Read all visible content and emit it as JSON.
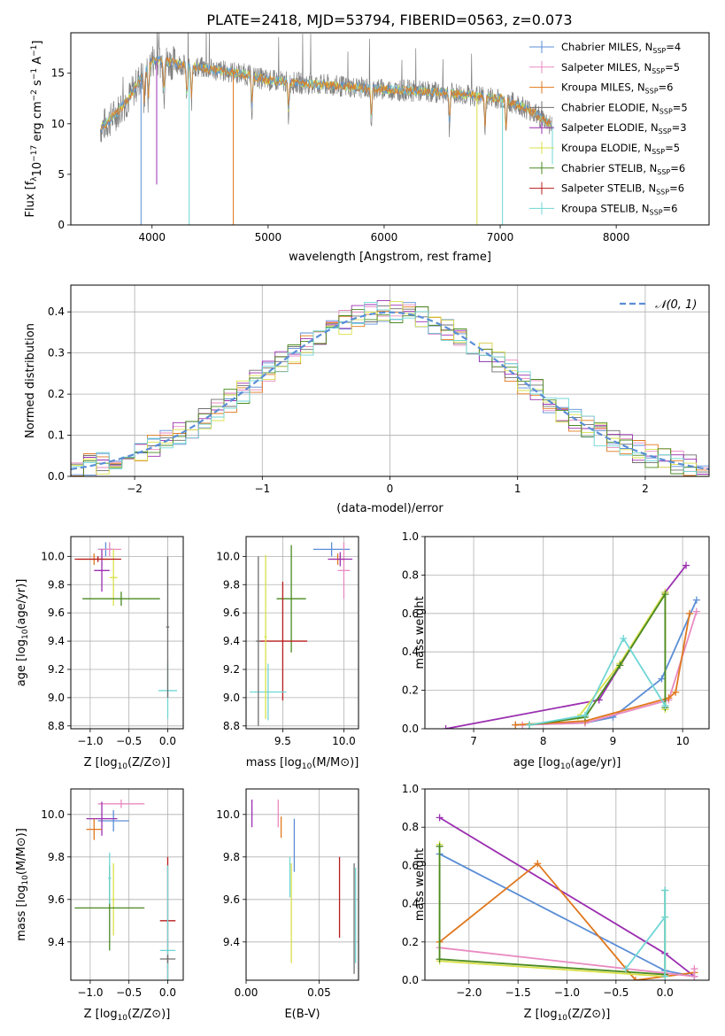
{
  "title": "PLATE=2418, MJD=53794, FIBERID=0563, z=0.073",
  "colors": {
    "series": [
      "#5b8ed6",
      "#e88ac0",
      "#e0781e",
      "#6f6f6f",
      "#9b2fb0",
      "#d9e04a",
      "#4a8a22",
      "#b81c1c",
      "#70d6d6"
    ],
    "spectrum_obs": "#808080",
    "gaussian": "#5b8ed6",
    "grid": "#b0b0b0"
  },
  "legend_top": [
    "Chabrier MILES, N",
    "Salpeter MILES, N",
    "Kroupa MILES, N",
    "Chabrier ELODIE, N",
    "Salpeter ELODIE, N",
    "Kroupa ELODIE, N",
    "Chabrier STELIB, N",
    "Salpeter STELIB, N",
    "Kroupa STELIB, N"
  ],
  "legend_sub": "SSP",
  "legend_counts": [
    "=4",
    "=5",
    "=6",
    "=5",
    "=3",
    "=5",
    "=6",
    "=6",
    "=6"
  ],
  "legend_hist": "𝒩(0, 1)",
  "chart_data": [
    {
      "type": "line",
      "name": "spectrum",
      "xlabel": "wavelength [Angstrom, rest frame]",
      "ylabel": "Flux [f",
      "ylabel_parts": [
        "Flux [f",
        "λ",
        "10",
        "−17",
        " erg cm",
        "−2",
        " s",
        "−1",
        " A",
        "−1",
        "]"
      ],
      "xlim": [
        3300,
        8800
      ],
      "ylim": [
        0,
        19
      ],
      "xticks": [
        4000,
        5000,
        6000,
        7000,
        8000
      ],
      "yticks": [
        0,
        5,
        10,
        15
      ],
      "continuum": [
        [
          3550,
          9.5
        ],
        [
          3650,
          10.5
        ],
        [
          3800,
          12.5
        ],
        [
          3900,
          14.5
        ],
        [
          4000,
          16.3
        ],
        [
          4100,
          16.2
        ],
        [
          4300,
          15.8
        ],
        [
          4500,
          15.4
        ],
        [
          4800,
          14.9
        ],
        [
          5000,
          14.3
        ],
        [
          5500,
          13.8
        ],
        [
          6000,
          13.4
        ],
        [
          6500,
          13.1
        ],
        [
          7000,
          12.5
        ],
        [
          7200,
          11.7
        ],
        [
          7300,
          11.0
        ],
        [
          7400,
          10.2
        ],
        [
          7450,
          9.8
        ]
      ],
      "absorption_lines": [
        3933,
        3968,
        4102,
        4300,
        4340,
        4861,
        5175,
        5890,
        6563,
        6870,
        7050
      ],
      "spikes": [
        4700,
        6800,
        7020
      ]
    },
    {
      "type": "line",
      "name": "residual-histogram",
      "xlabel": "(data-model)/error",
      "ylabel": "Normed distribution",
      "xlim": [
        -2.5,
        2.5
      ],
      "ylim": [
        0,
        0.465
      ],
      "xticks": [
        -2,
        -1,
        0,
        1,
        2
      ],
      "xticklabels": [
        "−2",
        "−1",
        "0",
        "1",
        "2"
      ],
      "yticks": [
        0.0,
        0.1,
        0.2,
        0.3,
        0.4
      ],
      "yticklabels": [
        "0.0",
        "0.1",
        "0.2",
        "0.3",
        "0.4"
      ],
      "bin_width": 0.1
    },
    {
      "type": "scatter",
      "name": "age-vs-Z",
      "xlabel": "Z [log",
      "ylabel": "age  [log",
      "xlim": [
        -1.25,
        0.2
      ],
      "ylim": [
        8.78,
        10.14
      ],
      "xticks": [
        -1.0,
        -0.5,
        0.0
      ],
      "xticklabels": [
        "−1.0",
        "−0.5",
        "0.0"
      ],
      "yticks": [
        8.8,
        9.0,
        9.2,
        9.4,
        9.6,
        9.8,
        10.0
      ],
      "yticklabels": [
        "8.8",
        "9.0",
        "9.2",
        "9.4",
        "9.6",
        "9.8",
        "10.0"
      ],
      "crosses": [
        {
          "s": 0,
          "x": -0.8,
          "y": 10.05,
          "dx": 0.1,
          "dy": 0.05
        },
        {
          "s": 1,
          "x": -0.75,
          "y": 10.05,
          "dx": 0.15,
          "dy": 0.05
        },
        {
          "s": 2,
          "x": -0.95,
          "y": 9.98,
          "dx": 0.2,
          "dy": 0.04
        },
        {
          "s": 4,
          "x": -0.85,
          "y": 9.9,
          "dx": 0.1,
          "dy": 0.15
        },
        {
          "s": 5,
          "x": -0.7,
          "y": 9.85,
          "dx": 0.05,
          "dy": 0.2
        },
        {
          "s": 6,
          "x": -0.6,
          "y": 9.7,
          "dx": 0.5,
          "dy": 0.05
        },
        {
          "s": 7,
          "x": -0.9,
          "y": 9.98,
          "dx": 0.3,
          "dy": 0.02
        },
        {
          "s": 8,
          "x": 0.0,
          "y": 9.05,
          "dx": 0.12,
          "dy": 0.2
        },
        {
          "s": 3,
          "x": 0.0,
          "y": 9.5,
          "dx": 0.02,
          "dy": 0.5
        }
      ]
    },
    {
      "type": "scatter",
      "name": "age-vs-mass",
      "xlabel": "mass [log",
      "xlim": [
        9.2,
        10.12
      ],
      "ylim": [
        8.78,
        10.14
      ],
      "xticks": [
        9.5,
        10.0
      ],
      "xticklabels": [
        "9.5",
        "10.0"
      ],
      "yticks": [
        8.8,
        9.0,
        9.2,
        9.4,
        9.6,
        9.8,
        10.0
      ],
      "yticklabels": [
        "8.8",
        "9.0",
        "9.2",
        "9.4",
        "9.6",
        "9.8",
        "10.0"
      ],
      "crosses": [
        {
          "s": 0,
          "x": 9.9,
          "y": 10.05,
          "dx": 0.15,
          "dy": 0.05
        },
        {
          "s": 1,
          "x": 10.0,
          "y": 9.9,
          "dx": 0.05,
          "dy": 0.2
        },
        {
          "s": 2,
          "x": 9.95,
          "y": 9.98,
          "dx": 0.06,
          "dy": 0.04
        },
        {
          "s": 4,
          "x": 9.97,
          "y": 9.98,
          "dx": 0.1,
          "dy": 0.05
        },
        {
          "s": 6,
          "x": 9.57,
          "y": 9.7,
          "dx": 0.12,
          "dy": 0.38
        },
        {
          "s": 7,
          "x": 9.5,
          "y": 9.4,
          "dx": 0.2,
          "dy": 0.42
        },
        {
          "s": 8,
          "x": 9.38,
          "y": 9.04,
          "dx": 0.15,
          "dy": 0.2
        },
        {
          "s": 3,
          "x": 9.3,
          "y": 9.4,
          "dx": 0.02,
          "dy": 0.6
        },
        {
          "s": 5,
          "x": 9.36,
          "y": 9.43,
          "dx": 0.01,
          "dy": 0.58
        }
      ]
    },
    {
      "type": "line",
      "name": "mass-weight-vs-age",
      "xlabel": "age  [log",
      "ylabel": "mass weight",
      "xlim": [
        6.3,
        10.38
      ],
      "ylim": [
        0,
        1
      ],
      "xticks": [
        7,
        8,
        9,
        10
      ],
      "xticklabels": [
        "7",
        "8",
        "9",
        "10"
      ],
      "yticks": [
        0.0,
        0.2,
        0.4,
        0.6,
        0.8,
        1.0
      ],
      "yticklabels": [
        "0.0",
        "0.2",
        "0.4",
        "0.6",
        "0.8",
        "1.0"
      ],
      "series": [
        {
          "s": 0,
          "x": [
            7.6,
            8.6,
            9.0,
            9.7,
            10.2
          ],
          "y": [
            0.02,
            0.03,
            0.06,
            0.26,
            0.67
          ]
        },
        {
          "s": 1,
          "x": [
            7.7,
            8.6,
            9.8,
            10.2
          ],
          "y": [
            0.02,
            0.03,
            0.15,
            0.61
          ]
        },
        {
          "s": 2,
          "x": [
            7.6,
            8.6,
            9.8,
            9.9,
            10.1
          ],
          "y": [
            0.02,
            0.04,
            0.16,
            0.19,
            0.6
          ]
        },
        {
          "s": 4,
          "x": [
            6.6,
            8.8,
            9.75,
            10.05
          ],
          "y": [
            0.0,
            0.15,
            0.71,
            0.85
          ]
        },
        {
          "s": 5,
          "x": [
            7.8,
            8.5,
            9.1,
            9.75,
            9.75
          ],
          "y": [
            0.02,
            0.06,
            0.34,
            0.71,
            0.1
          ]
        },
        {
          "s": 6,
          "x": [
            7.8,
            8.6,
            9.1,
            9.75,
            9.75
          ],
          "y": [
            0.02,
            0.06,
            0.33,
            0.7,
            0.11
          ]
        },
        {
          "s": 8,
          "x": [
            7.8,
            8.6,
            9.15,
            9.75
          ],
          "y": [
            0.02,
            0.07,
            0.47,
            0.12
          ]
        }
      ]
    },
    {
      "type": "scatter",
      "name": "mass-vs-Z",
      "xlabel": "Z [log",
      "ylabel": "mass [log",
      "xlim": [
        -1.25,
        0.2
      ],
      "ylim": [
        9.22,
        10.12
      ],
      "xticks": [
        -1.0,
        -0.5,
        0.0
      ],
      "xticklabels": [
        "−1.0",
        "−0.5",
        "0.0"
      ],
      "yticks": [
        9.4,
        9.6,
        9.8,
        10.0
      ],
      "yticklabels": [
        "9.4",
        "9.6",
        "9.8",
        "10.0"
      ],
      "crosses": [
        {
          "s": 1,
          "x": -0.6,
          "y": 10.05,
          "dx": 0.3,
          "dy": 0.02
        },
        {
          "s": 0,
          "x": -0.7,
          "y": 9.97,
          "dx": 0.2,
          "dy": 0.05
        },
        {
          "s": 4,
          "x": -0.85,
          "y": 9.98,
          "dx": 0.2,
          "dy": 0.08
        },
        {
          "s": 2,
          "x": -0.95,
          "y": 9.93,
          "dx": 0.1,
          "dy": 0.05
        },
        {
          "s": 5,
          "x": -0.7,
          "y": 9.6,
          "dx": 0.02,
          "dy": 0.17
        },
        {
          "s": 6,
          "x": -0.75,
          "y": 9.56,
          "dx": 0.45,
          "dy": 0.2
        },
        {
          "s": 8,
          "x": -0.75,
          "y": 9.7,
          "dx": 0.02,
          "dy": 0.12
        },
        {
          "s": 7,
          "x": 0.0,
          "y": 9.5,
          "dx": 0.1,
          "dy": 0.3
        },
        {
          "s": 8,
          "x": 0.0,
          "y": 9.36,
          "dx": 0.1,
          "dy": 0.4
        },
        {
          "s": 3,
          "x": 0.0,
          "y": 9.32,
          "dx": 0.1,
          "dy": 0.02
        }
      ]
    },
    {
      "type": "scatter",
      "name": "mass-vs-EBV",
      "xlabel": "E(B-V)",
      "xlim": [
        0.0,
        0.077
      ],
      "ylim": [
        9.22,
        10.12
      ],
      "xticks": [
        0.0,
        0.05
      ],
      "xticklabels": [
        "0.00",
        "0.05"
      ],
      "yticks": [
        9.4,
        9.6,
        9.8,
        10.0
      ],
      "yticklabels": [
        "9.4",
        "9.6",
        "9.8",
        "10.0"
      ],
      "bars": [
        {
          "s": 4,
          "x": 0.004,
          "y0": 9.94,
          "y1": 10.07
        },
        {
          "s": 1,
          "x": 0.022,
          "y0": 9.94,
          "y1": 10.07
        },
        {
          "s": 2,
          "x": 0.024,
          "y0": 9.89,
          "y1": 9.99
        },
        {
          "s": 0,
          "x": 0.033,
          "y0": 9.73,
          "y1": 9.98
        },
        {
          "s": 8,
          "x": 0.03,
          "y0": 9.61,
          "y1": 9.8
        },
        {
          "s": 5,
          "x": 0.031,
          "y0": 9.3,
          "y1": 9.77
        },
        {
          "s": 7,
          "x": 0.064,
          "y0": 9.42,
          "y1": 9.8
        },
        {
          "s": 3,
          "x": 0.074,
          "y0": 9.25,
          "y1": 9.77
        },
        {
          "s": 8,
          "x": 0.075,
          "y0": 9.3,
          "y1": 9.75
        }
      ]
    },
    {
      "type": "line",
      "name": "mass-weight-vs-Z",
      "xlabel": "Z [log",
      "ylabel": "mass weight",
      "xlim": [
        -2.45,
        0.45
      ],
      "ylim": [
        0,
        1
      ],
      "xticks": [
        -2.0,
        -1.5,
        -1.0,
        -0.5,
        0.0
      ],
      "xticklabels": [
        "−2.0",
        "−1.5",
        "−1.0",
        "−0.5",
        "0.0"
      ],
      "yticks": [
        0.0,
        0.2,
        0.4,
        0.6,
        0.8,
        1.0
      ],
      "yticklabels": [
        "0.0",
        "0.2",
        "0.4",
        "0.6",
        "0.8",
        "1.0"
      ],
      "series": [
        {
          "s": 4,
          "x": [
            -2.3,
            0.0,
            0.3
          ],
          "y": [
            0.85,
            0.14,
            0.02
          ]
        },
        {
          "s": 0,
          "x": [
            -2.3,
            0.0,
            0.3
          ],
          "y": [
            0.66,
            0.05,
            0.02
          ]
        },
        {
          "s": 2,
          "x": [
            -2.3,
            -1.3,
            -0.3,
            0.3
          ],
          "y": [
            0.2,
            0.61,
            0.0,
            0.04
          ]
        },
        {
          "s": 1,
          "x": [
            -2.3,
            0.3,
            0.3
          ],
          "y": [
            0.17,
            0.02,
            0.06
          ]
        },
        {
          "s": 5,
          "x": [
            -2.3,
            -2.3,
            0.0,
            0.0
          ],
          "y": [
            0.71,
            0.1,
            0.02,
            0.33
          ]
        },
        {
          "s": 6,
          "x": [
            -2.3,
            -2.3,
            0.0,
            0.0
          ],
          "y": [
            0.7,
            0.11,
            0.03,
            0.47
          ]
        },
        {
          "s": 8,
          "x": [
            -0.4,
            0.0,
            0.0,
            0.0
          ],
          "y": [
            0.06,
            0.33,
            0.47,
            0.02
          ]
        }
      ]
    }
  ]
}
